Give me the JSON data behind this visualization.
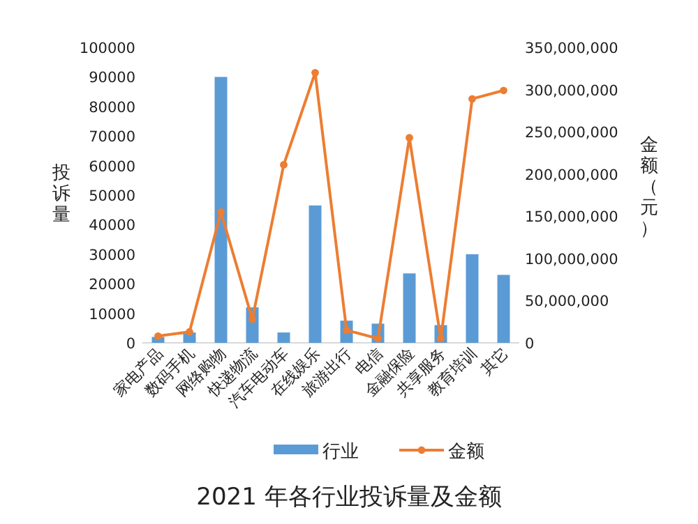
{
  "chart_data": {
    "type": "bar",
    "title": "2021 年各行业投诉量及金额",
    "ylabel": "投诉量",
    "y2label": "金额（元）",
    "categories": [
      "家电产品",
      "数码手机",
      "网络购物",
      "快递物流",
      "汽车电动车",
      "在线娱乐",
      "旅游出行",
      "电信",
      "金融保险",
      "共享服务",
      "教育培训",
      "其它"
    ],
    "series": [
      {
        "name": "行业",
        "color": "#5b9bd5",
        "values": [
          2000,
          3500,
          90000,
          12000,
          3500,
          46500,
          7500,
          6500,
          23500,
          6000,
          30000,
          23000
        ]
      },
      {
        "name": "金额",
        "type": "line",
        "axis": "y2",
        "color": "#ed7d31",
        "marker": "circle",
        "values": [
          8000000,
          13000000,
          155000000,
          28000000,
          211000000,
          320000000,
          15000000,
          5000000,
          243000000,
          5000000,
          289000000,
          299000000
        ]
      }
    ],
    "ylim": [
      0,
      100000
    ],
    "yticks": [
      0,
      10000,
      20000,
      30000,
      40000,
      50000,
      60000,
      70000,
      80000,
      90000,
      100000
    ],
    "y2lim": [
      0,
      350000000
    ],
    "y2ticks": [
      0,
      {
        "value": 50000000,
        "label": "50,000,000"
      },
      {
        "value": 100000000,
        "label": "100,000,000"
      },
      {
        "value": 150000000,
        "label": "150,000,000"
      },
      {
        "value": 200000000,
        "label": "200,000,000"
      },
      {
        "value": 250000000,
        "label": "250,000,000"
      },
      {
        "value": 300000000,
        "label": "300,000,000"
      },
      {
        "value": 350000000,
        "label": "350,000,000"
      }
    ],
    "grid": false,
    "legend": "bottom"
  }
}
